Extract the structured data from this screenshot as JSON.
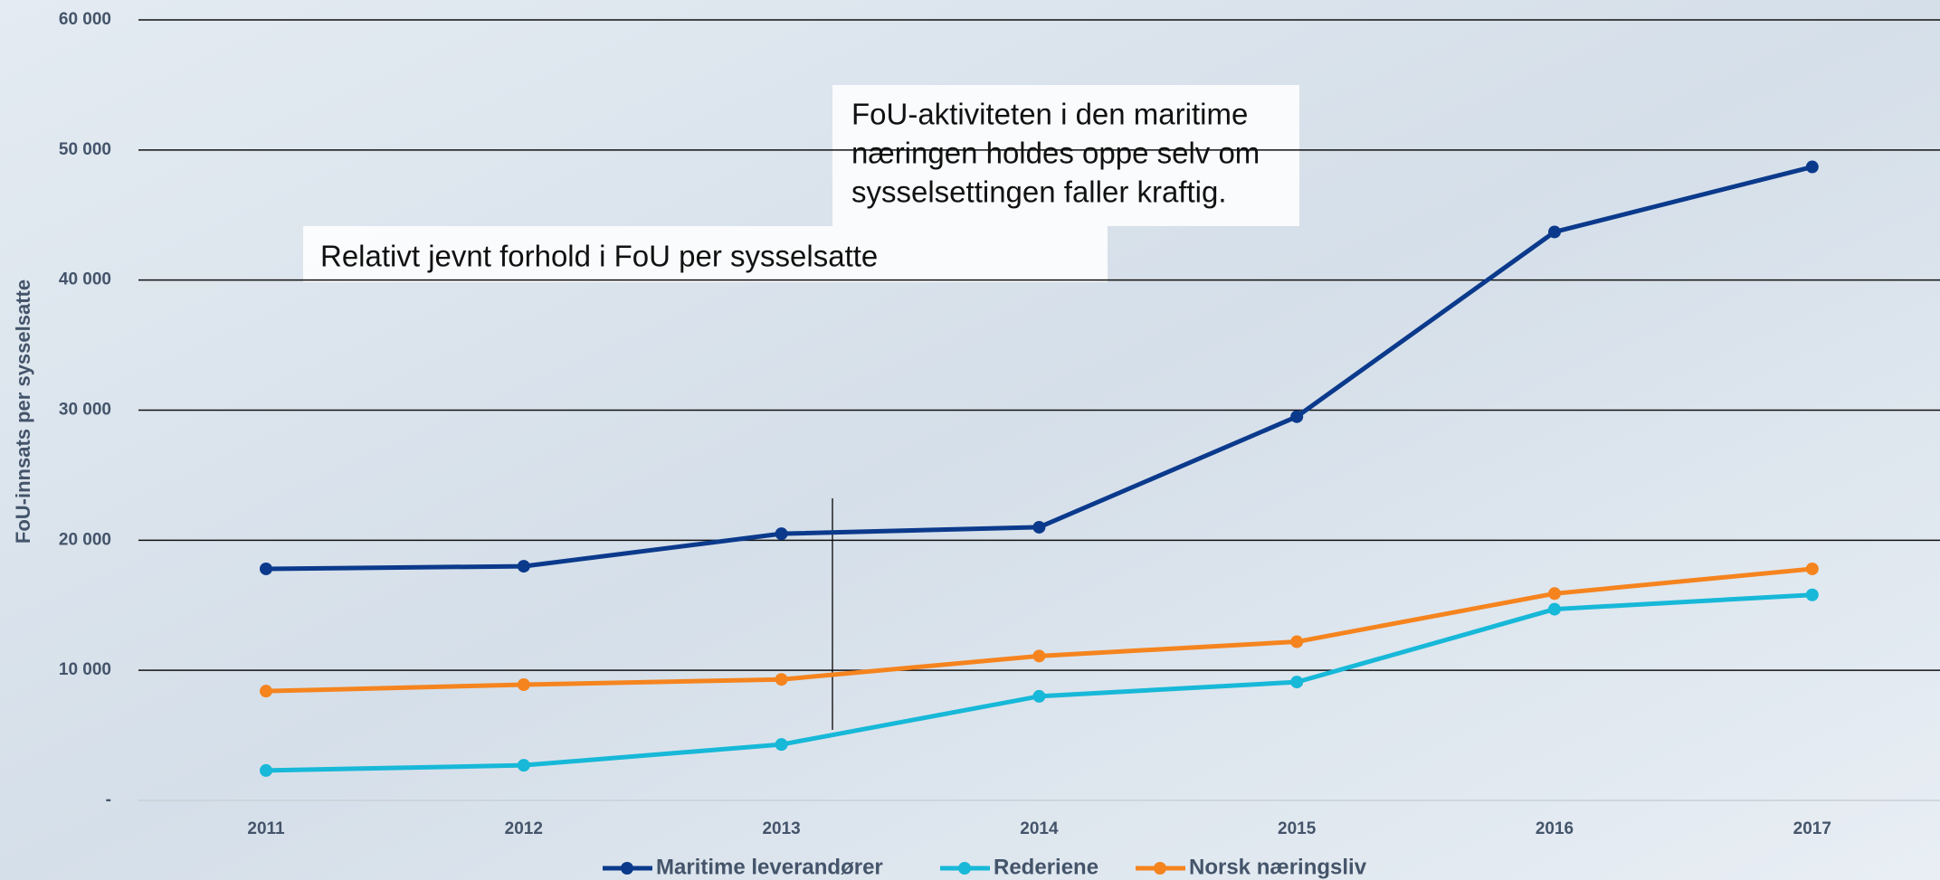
{
  "chart_data": {
    "type": "line",
    "y_label": "FoU-innsats per sysselsatte",
    "categories": [
      "2011",
      "2012",
      "2013",
      "2014",
      "2015",
      "2016",
      "2017"
    ],
    "series": [
      {
        "name": "Maritime leverandører",
        "color": "#0b3a8c",
        "values": [
          17800,
          18000,
          20500,
          21000,
          29500,
          43700,
          48700
        ]
      },
      {
        "name": "Rederiene",
        "color": "#17b8d8",
        "values": [
          2300,
          2700,
          4300,
          8000,
          9100,
          14700,
          15800
        ]
      },
      {
        "name": "Norsk næringsliv",
        "color": "#f5841f",
        "values": [
          8400,
          8900,
          9300,
          11100,
          12200,
          15900,
          17800
        ]
      }
    ],
    "ylim": [
      0,
      60000
    ],
    "yticks": [
      {
        "value": 0,
        "label": "-"
      },
      {
        "value": 10000,
        "label": "10 000"
      },
      {
        "value": 20000,
        "label": "20 000"
      },
      {
        "value": 30000,
        "label": "30 000"
      },
      {
        "value": 40000,
        "label": "40 000"
      },
      {
        "value": 50000,
        "label": "50 000"
      },
      {
        "value": 60000,
        "label": "60 000"
      }
    ],
    "grid": true,
    "legend": "bottom",
    "annotations": [
      {
        "lines": [
          "FoU-aktiviteten i den maritime",
          "næringen holdes oppe selv om",
          "sysselsettingen faller kraftig."
        ]
      },
      {
        "lines": [
          "Relativt jevnt forhold i FoU per sysselsatte"
        ]
      }
    ]
  }
}
